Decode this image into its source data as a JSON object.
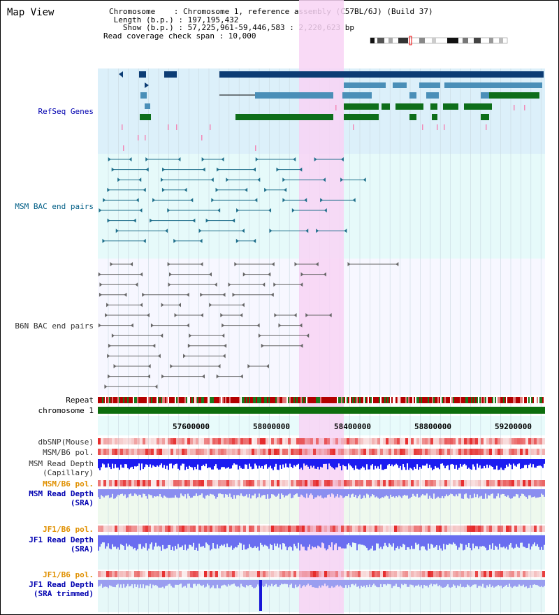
{
  "window": {
    "title": "Map View"
  },
  "info": {
    "chromosome_line": "Chromosome    : Chromosome 1, reference assembly (C57BL/6J) (Build 37)",
    "length_line": " Length (b.p.) : 197,195,432",
    "show_line": "   Show (b.p.) : 57,225,961-59,446,583 : 2,220,623 bp",
    "span_line": "Read coverage check span : 10,000"
  },
  "tracks": {
    "refseq": {
      "label": "RefSeq Genes"
    },
    "msm_bac": {
      "label": "MSM BAC end pairs"
    },
    "b6n_bac": {
      "label": "B6N BAC end pairs"
    },
    "repeat": {
      "label": "Repeat"
    },
    "chromosome": {
      "label": "chromosome 1"
    },
    "dbsnp": {
      "label": "dbSNP(Mouse)"
    },
    "msm_pol_1": {
      "label": "MSM/B6 pol."
    },
    "msm_depth_cap": {
      "label_1": "MSM Read Depth",
      "label_2": "(Capillary)"
    },
    "msm_pol_2": {
      "label": "MSM/B6 pol."
    },
    "msm_depth_sra": {
      "label_1": "MSM Read Depth",
      "label_2": "(SRA)"
    },
    "jf1_pol_1": {
      "label": "JF1/B6 pol."
    },
    "jf1_depth_sra": {
      "label_1": "JF1 Read Depth",
      "label_2": "(SRA)"
    },
    "jf1_pol_2": {
      "label": "JF1/B6 pol."
    },
    "jf1_depth_trim": {
      "label_1": "JF1 Read Depth",
      "label_2": "(SRA trimmed)"
    }
  },
  "axis": {
    "ticks": [
      "57600000",
      "58000000",
      "58400000",
      "58800000",
      "59200000"
    ]
  },
  "colors": {
    "refseq_bg": "#dcf0fa",
    "msm_bg": "#e6fafa",
    "b6n_bg": "#f7f7ff",
    "highlight": "#f8d4f4",
    "gene_dark": "#0c3c74",
    "gene_mid": "#4a8fb8",
    "gene_green": "#0d6e1a",
    "chromosome": "#0d6e0d"
  }
}
